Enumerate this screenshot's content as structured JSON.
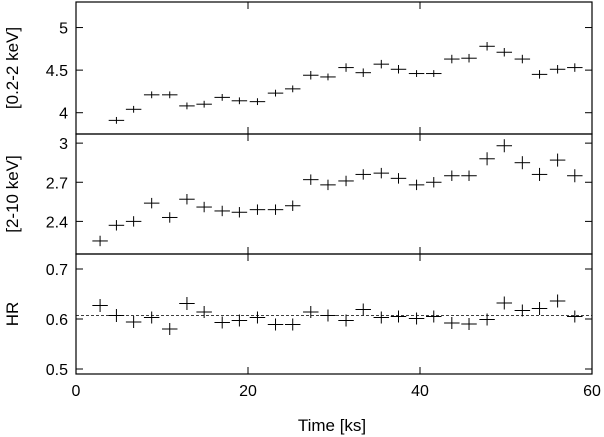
{
  "chart_data": {
    "type": "scatter",
    "x_axis": {
      "label": "Time [ks]",
      "range": [
        0,
        60
      ],
      "ticks": [
        0,
        20,
        40,
        60
      ],
      "tick_labels": [
        "0",
        "20",
        "40",
        "60"
      ],
      "x_error": 0.9
    },
    "panels": [
      {
        "id": "soft",
        "ylabel": "[0.2-2 keV]",
        "ylim": [
          3.75,
          5.3
        ],
        "yticks": [
          4,
          4.5,
          5
        ],
        "ytick_labels": [
          "4",
          "4.5",
          "5"
        ],
        "points": [
          {
            "x": 4.7,
            "y": 3.91,
            "yerr": 0.04
          },
          {
            "x": 6.7,
            "y": 4.04,
            "yerr": 0.04
          },
          {
            "x": 8.8,
            "y": 4.21,
            "yerr": 0.04
          },
          {
            "x": 10.9,
            "y": 4.21,
            "yerr": 0.04
          },
          {
            "x": 12.9,
            "y": 4.08,
            "yerr": 0.04
          },
          {
            "x": 14.9,
            "y": 4.1,
            "yerr": 0.04
          },
          {
            "x": 17.0,
            "y": 4.18,
            "yerr": 0.04
          },
          {
            "x": 19.0,
            "y": 4.14,
            "yerr": 0.04
          },
          {
            "x": 21.1,
            "y": 4.13,
            "yerr": 0.04
          },
          {
            "x": 23.2,
            "y": 4.23,
            "yerr": 0.04
          },
          {
            "x": 25.2,
            "y": 4.28,
            "yerr": 0.04
          },
          {
            "x": 27.3,
            "y": 4.44,
            "yerr": 0.05
          },
          {
            "x": 29.3,
            "y": 4.42,
            "yerr": 0.04
          },
          {
            "x": 31.4,
            "y": 4.53,
            "yerr": 0.05
          },
          {
            "x": 33.4,
            "y": 4.47,
            "yerr": 0.05
          },
          {
            "x": 35.5,
            "y": 4.57,
            "yerr": 0.05
          },
          {
            "x": 37.5,
            "y": 4.51,
            "yerr": 0.05
          },
          {
            "x": 39.6,
            "y": 4.46,
            "yerr": 0.04
          },
          {
            "x": 41.6,
            "y": 4.46,
            "yerr": 0.04
          },
          {
            "x": 43.7,
            "y": 4.63,
            "yerr": 0.05
          },
          {
            "x": 45.7,
            "y": 4.64,
            "yerr": 0.05
          },
          {
            "x": 47.8,
            "y": 4.78,
            "yerr": 0.05
          },
          {
            "x": 49.8,
            "y": 4.71,
            "yerr": 0.05
          },
          {
            "x": 51.9,
            "y": 4.63,
            "yerr": 0.05
          },
          {
            "x": 53.9,
            "y": 4.45,
            "yerr": 0.05
          },
          {
            "x": 56.0,
            "y": 4.51,
            "yerr": 0.05
          },
          {
            "x": 58.0,
            "y": 4.53,
            "yerr": 0.05
          }
        ]
      },
      {
        "id": "hard",
        "ylabel": "[2-10 keV]",
        "ylim": [
          2.15,
          3.07
        ],
        "yticks": [
          2.4,
          2.7,
          3
        ],
        "ytick_labels": [
          "2.4",
          "2.7",
          "3"
        ],
        "points": [
          {
            "x": 2.8,
            "y": 2.25,
            "yerr": 0.04
          },
          {
            "x": 4.7,
            "y": 2.37,
            "yerr": 0.04
          },
          {
            "x": 6.7,
            "y": 2.4,
            "yerr": 0.04
          },
          {
            "x": 8.8,
            "y": 2.54,
            "yerr": 0.04
          },
          {
            "x": 10.9,
            "y": 2.43,
            "yerr": 0.04
          },
          {
            "x": 12.9,
            "y": 2.57,
            "yerr": 0.04
          },
          {
            "x": 14.9,
            "y": 2.51,
            "yerr": 0.04
          },
          {
            "x": 17.0,
            "y": 2.48,
            "yerr": 0.04
          },
          {
            "x": 19.0,
            "y": 2.47,
            "yerr": 0.04
          },
          {
            "x": 21.1,
            "y": 2.49,
            "yerr": 0.04
          },
          {
            "x": 23.2,
            "y": 2.49,
            "yerr": 0.04
          },
          {
            "x": 25.2,
            "y": 2.52,
            "yerr": 0.04
          },
          {
            "x": 27.3,
            "y": 2.72,
            "yerr": 0.04
          },
          {
            "x": 29.3,
            "y": 2.68,
            "yerr": 0.04
          },
          {
            "x": 31.4,
            "y": 2.71,
            "yerr": 0.04
          },
          {
            "x": 33.4,
            "y": 2.76,
            "yerr": 0.04
          },
          {
            "x": 35.5,
            "y": 2.77,
            "yerr": 0.04
          },
          {
            "x": 37.5,
            "y": 2.73,
            "yerr": 0.04
          },
          {
            "x": 39.6,
            "y": 2.68,
            "yerr": 0.04
          },
          {
            "x": 41.6,
            "y": 2.7,
            "yerr": 0.04
          },
          {
            "x": 43.7,
            "y": 2.75,
            "yerr": 0.04
          },
          {
            "x": 45.7,
            "y": 2.75,
            "yerr": 0.04
          },
          {
            "x": 47.8,
            "y": 2.88,
            "yerr": 0.05
          },
          {
            "x": 49.8,
            "y": 2.98,
            "yerr": 0.05
          },
          {
            "x": 51.9,
            "y": 2.85,
            "yerr": 0.05
          },
          {
            "x": 53.9,
            "y": 2.76,
            "yerr": 0.05
          },
          {
            "x": 56.0,
            "y": 2.87,
            "yerr": 0.05
          },
          {
            "x": 58.0,
            "y": 2.75,
            "yerr": 0.05
          }
        ]
      },
      {
        "id": "hr",
        "ylabel": "HR",
        "ylim": [
          0.49,
          0.73
        ],
        "yticks": [
          0.5,
          0.6,
          0.7
        ],
        "ytick_labels": [
          "0.5",
          "0.6",
          "0.7"
        ],
        "reference_line": 0.607,
        "points": [
          {
            "x": 2.8,
            "y": 0.627,
            "yerr": 0.013
          },
          {
            "x": 4.7,
            "y": 0.607,
            "yerr": 0.013
          },
          {
            "x": 6.7,
            "y": 0.594,
            "yerr": 0.012
          },
          {
            "x": 8.8,
            "y": 0.603,
            "yerr": 0.012
          },
          {
            "x": 10.9,
            "y": 0.58,
            "yerr": 0.012
          },
          {
            "x": 12.9,
            "y": 0.631,
            "yerr": 0.013
          },
          {
            "x": 14.9,
            "y": 0.614,
            "yerr": 0.012
          },
          {
            "x": 17.0,
            "y": 0.593,
            "yerr": 0.012
          },
          {
            "x": 19.0,
            "y": 0.597,
            "yerr": 0.012
          },
          {
            "x": 21.1,
            "y": 0.603,
            "yerr": 0.012
          },
          {
            "x": 23.2,
            "y": 0.589,
            "yerr": 0.012
          },
          {
            "x": 25.2,
            "y": 0.589,
            "yerr": 0.012
          },
          {
            "x": 27.3,
            "y": 0.614,
            "yerr": 0.012
          },
          {
            "x": 29.3,
            "y": 0.607,
            "yerr": 0.012
          },
          {
            "x": 31.4,
            "y": 0.597,
            "yerr": 0.012
          },
          {
            "x": 33.4,
            "y": 0.619,
            "yerr": 0.012
          },
          {
            "x": 35.5,
            "y": 0.603,
            "yerr": 0.012
          },
          {
            "x": 37.5,
            "y": 0.605,
            "yerr": 0.012
          },
          {
            "x": 39.6,
            "y": 0.601,
            "yerr": 0.012
          },
          {
            "x": 41.6,
            "y": 0.605,
            "yerr": 0.012
          },
          {
            "x": 43.7,
            "y": 0.592,
            "yerr": 0.012
          },
          {
            "x": 45.7,
            "y": 0.59,
            "yerr": 0.012
          },
          {
            "x": 47.8,
            "y": 0.599,
            "yerr": 0.012
          },
          {
            "x": 49.8,
            "y": 0.632,
            "yerr": 0.013
          },
          {
            "x": 51.9,
            "y": 0.617,
            "yerr": 0.012
          },
          {
            "x": 53.9,
            "y": 0.621,
            "yerr": 0.013
          },
          {
            "x": 56.0,
            "y": 0.636,
            "yerr": 0.013
          },
          {
            "x": 58.0,
            "y": 0.605,
            "yerr": 0.012
          }
        ]
      }
    ]
  }
}
